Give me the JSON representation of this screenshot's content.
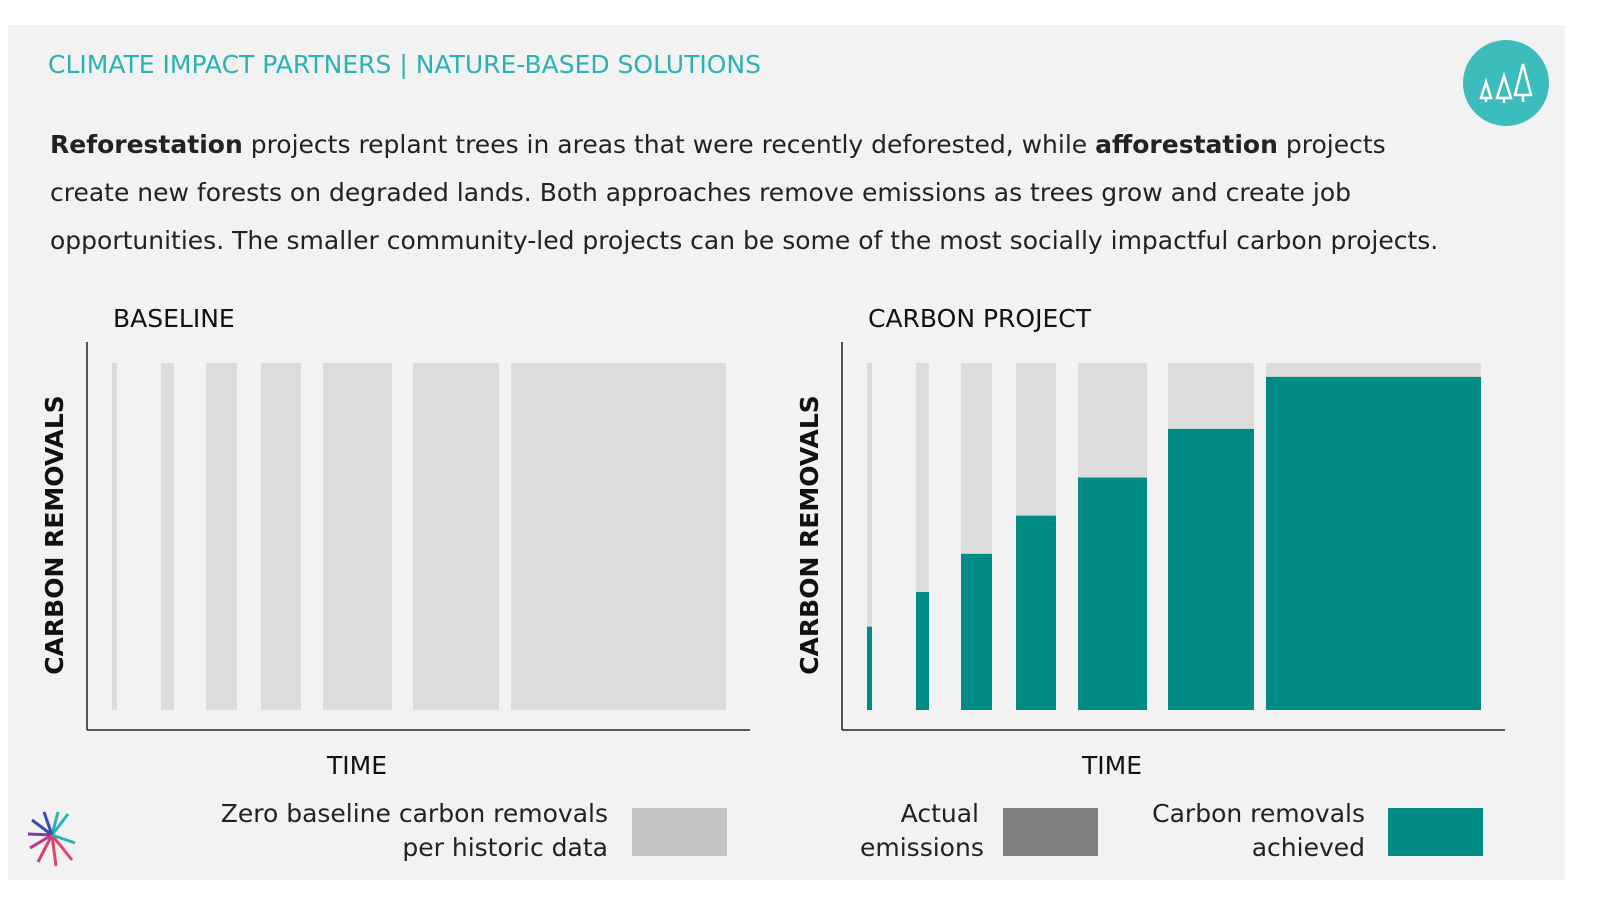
{
  "header": {
    "title": "CLIMATE IMPACT PARTNERS | NATURE-BASED SOLUTIONS"
  },
  "body": [
    "Reforestation",
    "projects replant trees in areas that were recently deforested, while",
    "afforestation",
    "projects create new forests on degraded lands. Both approaches remove emissions as trees grow and create job opportunities. The smaller community-led projects can be some of the most socially impactful carbon projects."
  ],
  "chart_data": [
    {
      "type": "bar",
      "title": "BASELINE",
      "x_label": "TIME",
      "y_label": "CARBON REMOVALS",
      "categories": [
        null,
        null,
        null,
        null,
        null,
        null,
        null
      ],
      "ylim": [
        0,
        100
      ],
      "series": [
        {
          "name": "Zero baseline carbon removals per historic data",
          "color": "#c4c4c4",
          "values": [
            0,
            0,
            0,
            0,
            0,
            0,
            0
          ]
        }
      ]
    },
    {
      "type": "bar",
      "title": "CARBON PROJECT",
      "x_label": "TIME",
      "y_label": "CARBON REMOVALS",
      "categories": [
        null,
        null,
        null,
        null,
        null,
        null,
        null
      ],
      "ylim": [
        0,
        100
      ],
      "series": [
        {
          "name": "Actual emissions",
          "color": "#808080",
          "values": [
            null,
            null,
            null,
            null,
            null,
            null,
            null
          ]
        },
        {
          "name": "Carbon removals achieved",
          "color": "#008b84",
          "values": [
            24,
            34,
            45,
            56,
            67,
            81,
            96
          ]
        }
      ]
    }
  ]
}
